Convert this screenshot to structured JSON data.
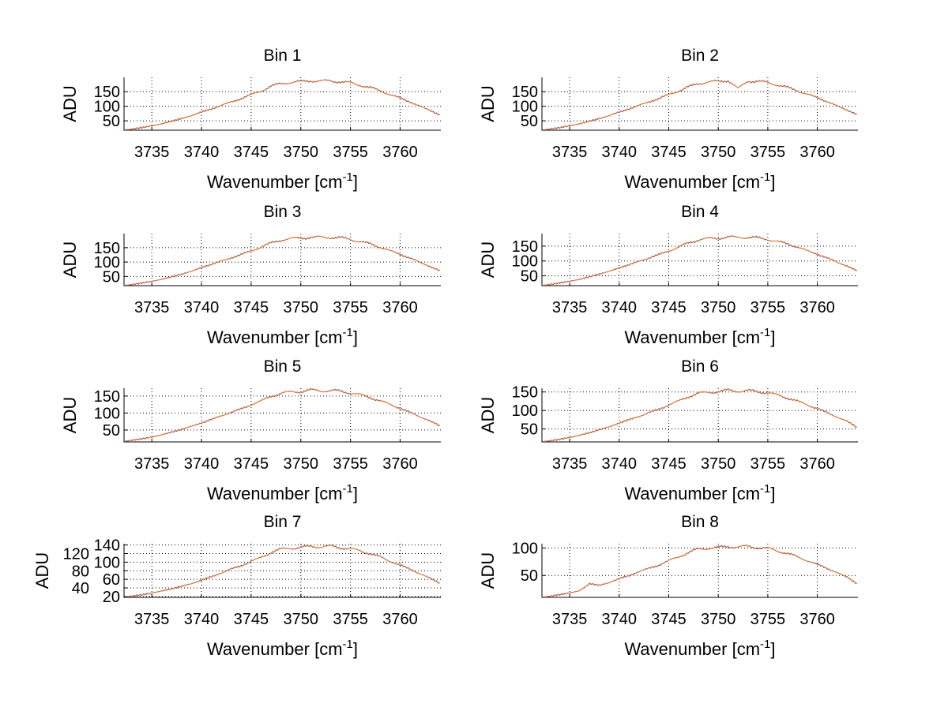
{
  "chart_data": {
    "type": "line",
    "layout": "4x2 subplots",
    "colors": {
      "series_blue": "#2a3fb8",
      "series_orange": "#f07a1a",
      "axis": "#000000"
    },
    "x": [
      3732,
      3733,
      3734,
      3735,
      3736,
      3737,
      3738,
      3739,
      3740,
      3741,
      3742,
      3743,
      3744,
      3745,
      3746,
      3747,
      3748,
      3749,
      3750,
      3751,
      3752,
      3753,
      3754,
      3755,
      3756,
      3757,
      3758,
      3759,
      3760,
      3761,
      3762,
      3763,
      3764
    ],
    "xlim": [
      3732.2,
      3764.1
    ],
    "xticks": [
      3735,
      3740,
      3745,
      3750,
      3755,
      3760
    ],
    "xlabel": {
      "text": "Wavenumber [cm",
      "sup": "-1",
      "close": "]"
    },
    "ylabel": "ADU",
    "grid": true,
    "subplots": [
      {
        "title": "Bin 1",
        "ylim": [
          18,
          199
        ],
        "yticks": [
          50,
          100,
          150
        ],
        "values": [
          18,
          22,
          27,
          33,
          40,
          49,
          58,
          68,
          80,
          91,
          103,
          115,
          126,
          140,
          152,
          168,
          178,
          182,
          184,
          188,
          186,
          187,
          184,
          180,
          172,
          164,
          153,
          140,
          128,
          115,
          100,
          86,
          70
        ]
      },
      {
        "title": "Bin 2",
        "ylim": [
          18,
          199
        ],
        "yticks": [
          50,
          100,
          150
        ],
        "values": [
          18,
          22,
          27,
          33,
          40,
          49,
          58,
          68,
          80,
          91,
          103,
          115,
          126,
          140,
          152,
          166,
          178,
          183,
          185,
          189,
          160,
          187,
          185,
          181,
          173,
          164,
          153,
          141,
          129,
          116,
          101,
          87,
          72
        ]
      },
      {
        "title": "Bin 3",
        "ylim": [
          18,
          199
        ],
        "yticks": [
          50,
          100,
          150
        ],
        "values": [
          18,
          22,
          27,
          33,
          40,
          49,
          58,
          68,
          81,
          92,
          103,
          115,
          126,
          139,
          152,
          166,
          177,
          181,
          184,
          186,
          186,
          186,
          184,
          179,
          171,
          163,
          152,
          139,
          127,
          114,
          99,
          85,
          70
        ]
      },
      {
        "title": "Bin 4",
        "ylim": [
          17,
          192
        ],
        "yticks": [
          50,
          100,
          150
        ],
        "values": [
          17,
          21,
          26,
          32,
          38,
          47,
          56,
          65,
          77,
          87,
          99,
          110,
          121,
          134,
          146,
          161,
          171,
          175,
          177,
          180,
          179,
          180,
          177,
          173,
          165,
          157,
          147,
          134,
          123,
          110,
          96,
          83,
          67
        ]
      },
      {
        "title": "Bin 5",
        "ylim": [
          15,
          173
        ],
        "yticks": [
          50,
          100,
          150
        ],
        "values": [
          16,
          20,
          24,
          29,
          36,
          44,
          52,
          61,
          71,
          81,
          92,
          102,
          112,
          125,
          135,
          150,
          158,
          162,
          164,
          167,
          166,
          166,
          164,
          160,
          153,
          146,
          136,
          125,
          114,
          102,
          89,
          77,
          62
        ]
      },
      {
        "title": "Bin 6",
        "ylim": [
          15,
          160
        ],
        "yticks": [
          50,
          100,
          150
        ],
        "values": [
          15,
          18,
          22,
          27,
          33,
          40,
          48,
          56,
          66,
          75,
          84,
          94,
          103,
          115,
          125,
          138,
          146,
          149,
          151,
          154,
          153,
          153,
          151,
          148,
          141,
          134,
          125,
          115,
          105,
          94,
          82,
          71,
          54
        ]
      },
      {
        "title": "Bin 7",
        "ylim": [
          18,
          143
        ],
        "yticks": [
          20,
          40,
          60,
          80,
          100,
          120,
          140
        ],
        "values": [
          19,
          21,
          24,
          28,
          33,
          38,
          44,
          50,
          58,
          66,
          75,
          84,
          92,
          102,
          111,
          123,
          130,
          133,
          134,
          137,
          136,
          137,
          134,
          131,
          126,
          120,
          112,
          102,
          93,
          84,
          73,
          63,
          51
        ]
      },
      {
        "title": "Bin 8",
        "ylim": [
          10,
          108
        ],
        "yticks": [
          50,
          100
        ],
        "values": [
          10,
          12,
          15,
          18,
          22,
          35,
          32,
          37,
          44,
          50,
          57,
          63,
          69,
          77,
          84,
          92,
          98,
          100,
          101,
          103,
          102,
          103,
          101,
          99,
          95,
          90,
          84,
          77,
          70,
          63,
          55,
          47,
          35
        ]
      }
    ]
  }
}
